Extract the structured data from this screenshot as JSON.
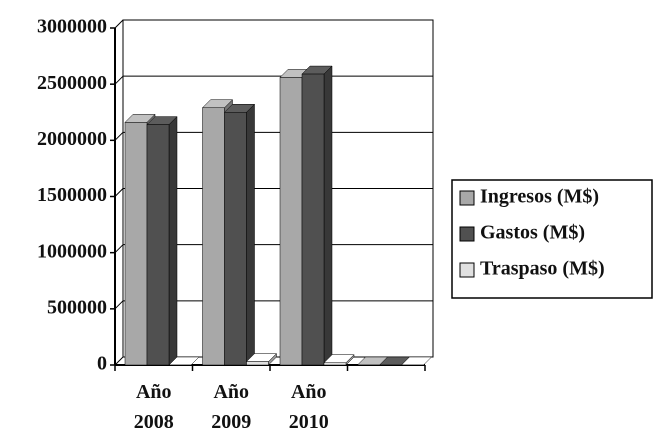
{
  "chart_data": {
    "type": "bar",
    "categories": [
      "Año 2008",
      "Año 2009",
      "Año 2010",
      null
    ],
    "series": [
      {
        "name": "Ingresos (M$)",
        "color": "#a8a8a8",
        "values": [
          2160000,
          2290000,
          2560000,
          0
        ]
      },
      {
        "name": "Gastos (M$)",
        "color": "#505050",
        "values": [
          2140000,
          2250000,
          2590000,
          0
        ]
      },
      {
        "name": "Traspaso (M$)",
        "color": "#e0e0e0",
        "values": [
          0,
          30000,
          20000,
          0
        ]
      }
    ],
    "ylim": [
      0,
      3000000
    ],
    "yticks": [
      0,
      500000,
      1000000,
      1500000,
      2000000,
      2500000,
      3000000
    ],
    "grid": true,
    "legend": "right"
  }
}
